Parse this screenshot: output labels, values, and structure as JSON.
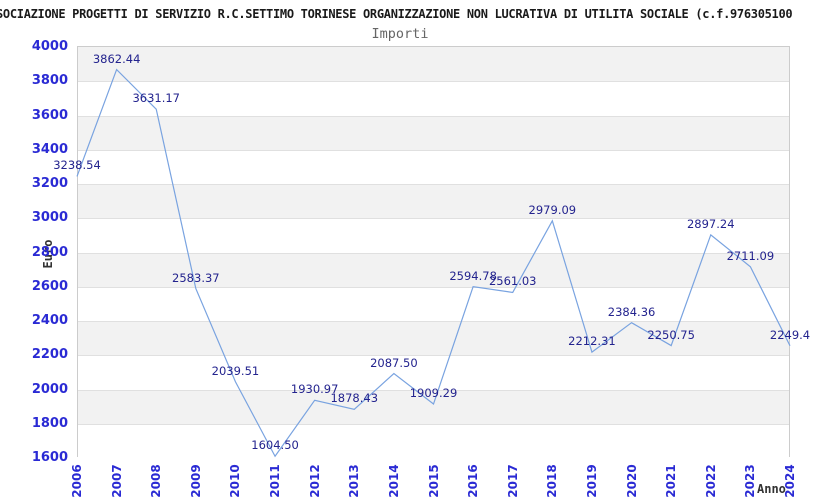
{
  "header": {
    "title": "SOCIAZIONE PROGETTI DI SERVIZIO R.C.SETTIMO TORINESE ORGANIZZAZIONE NON LUCRATIVA DI UTILITA SOCIALE (c.f.976305100",
    "subtitle": "Importi"
  },
  "chart_data": {
    "type": "line",
    "title": "Importi",
    "xlabel": "Anno",
    "ylabel": "Euro",
    "categories": [
      "2006",
      "2007",
      "2008",
      "2009",
      "2010",
      "2011",
      "2012",
      "2013",
      "2014",
      "2015",
      "2016",
      "2017",
      "2018",
      "2019",
      "2020",
      "2021",
      "2022",
      "2023",
      "2024"
    ],
    "values": [
      3238.54,
      3862.44,
      3631.17,
      2583.37,
      2039.51,
      1604.5,
      1930.97,
      1878.43,
      2087.5,
      1909.29,
      2594.78,
      2561.03,
      2979.09,
      2212.31,
      2384.36,
      2250.75,
      2897.24,
      2711.09,
      2249.4
    ],
    "point_labels": [
      "3238.54",
      "3862.44",
      "3631.17",
      "2583.37",
      "2039.51",
      "1604.50",
      "1930.97",
      "1878.43",
      "2087.50",
      "1909.29",
      "2594.78",
      "2561.03",
      "2979.09",
      "2212.31",
      "2384.36",
      "2250.75",
      "2897.24",
      "2711.09",
      "2249.4"
    ],
    "ylim": [
      1600,
      4000
    ],
    "ytick_step": 200,
    "yticks": [
      "4000",
      "3800",
      "3600",
      "3400",
      "3200",
      "3000",
      "2800",
      "2600",
      "2400",
      "2200",
      "2000",
      "1800",
      "1600"
    ],
    "grid": "horizontal-bands-alternating",
    "legend": "none",
    "colors": {
      "line": "#79a3e0",
      "tick_label": "#2a2ad4",
      "point_label": "#23238e",
      "band": "#f2f2f2",
      "axis_title": "#333333",
      "plot_border": "#cccccc",
      "gridline": "#e0e0e0"
    }
  }
}
